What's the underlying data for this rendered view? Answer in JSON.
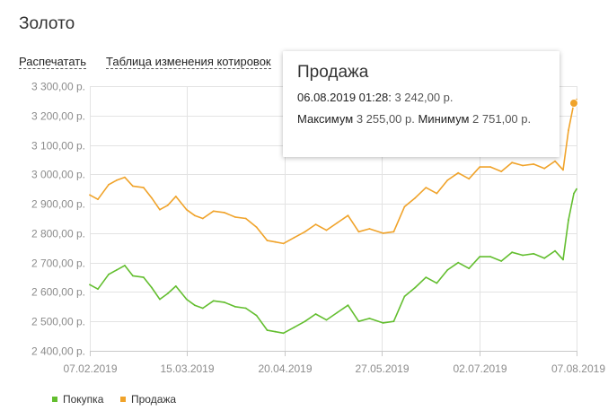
{
  "page": {
    "title": "Золото",
    "print_label": "Распечатать",
    "table_label": "Таблица изменения котировок"
  },
  "colors": {
    "buy": "#63be2f",
    "sell": "#f0a32a",
    "grid": "#e3e3e3",
    "axis": "#c8c8c8",
    "text": "#8c8c8c"
  },
  "tooltip": {
    "title": "Продажа",
    "datetime": "06.08.2019 01:28:",
    "value": "3 242,00 р.",
    "max_label": "Максимум",
    "max_value": "3 255,00 р.",
    "min_label": "Минимум",
    "min_value": "2 751,00 р."
  },
  "legend": [
    {
      "name": "Покупка",
      "color": "#63be2f"
    },
    {
      "name": "Продажа",
      "color": "#f0a32a"
    }
  ],
  "chart_data": {
    "type": "line",
    "y_tick_labels": [
      "3 300,00 р.",
      "3 200,00 р.",
      "3 100,00 р.",
      "3 000,00 р.",
      "2 900,00 р.",
      "2 800,00 р.",
      "2 700,00 р.",
      "2 600,00 р.",
      "2 500,00 р.",
      "2 400,00 р."
    ],
    "y_ticks": [
      3300,
      3200,
      3100,
      3000,
      2900,
      2800,
      2700,
      2600,
      2500,
      2400
    ],
    "ylim": [
      2390,
      3310
    ],
    "x_tick_labels": [
      "07.02.2019",
      "15.03.2019",
      "20.04.2019",
      "27.05.2019",
      "02.07.2019",
      "07.08.2019"
    ],
    "grid": true,
    "legend_position": "bottom-left",
    "x": [
      "2019-02-07",
      "2019-02-10",
      "2019-02-14",
      "2019-02-17",
      "2019-02-20",
      "2019-02-23",
      "2019-02-27",
      "2019-03-02",
      "2019-03-05",
      "2019-03-08",
      "2019-03-11",
      "2019-03-15",
      "2019-03-18",
      "2019-03-21",
      "2019-03-25",
      "2019-03-29",
      "2019-04-02",
      "2019-04-06",
      "2019-04-10",
      "2019-04-14",
      "2019-04-17",
      "2019-04-20",
      "2019-04-24",
      "2019-04-28",
      "2019-05-02",
      "2019-05-06",
      "2019-05-10",
      "2019-05-14",
      "2019-05-18",
      "2019-05-22",
      "2019-05-27",
      "2019-05-31",
      "2019-06-04",
      "2019-06-08",
      "2019-06-12",
      "2019-06-16",
      "2019-06-20",
      "2019-06-24",
      "2019-06-28",
      "2019-07-02",
      "2019-07-06",
      "2019-07-10",
      "2019-07-14",
      "2019-07-18",
      "2019-07-22",
      "2019-07-26",
      "2019-07-30",
      "2019-08-02",
      "2019-08-04",
      "2019-08-06",
      "2019-08-07"
    ],
    "series": [
      {
        "name": "Покупка",
        "color": "#63be2f",
        "values": [
          2625,
          2610,
          2660,
          2675,
          2690,
          2655,
          2650,
          2615,
          2575,
          2595,
          2620,
          2575,
          2555,
          2545,
          2570,
          2565,
          2550,
          2545,
          2520,
          2470,
          2465,
          2460,
          2480,
          2500,
          2525,
          2505,
          2530,
          2555,
          2500,
          2510,
          2495,
          2500,
          2585,
          2615,
          2650,
          2630,
          2675,
          2700,
          2680,
          2720,
          2720,
          2705,
          2735,
          2725,
          2730,
          2715,
          2740,
          2710,
          2845,
          2935,
          2950
        ]
      },
      {
        "name": "Продажа",
        "color": "#f0a32a",
        "values": [
          2930,
          2915,
          2965,
          2980,
          2990,
          2960,
          2955,
          2920,
          2880,
          2895,
          2925,
          2880,
          2860,
          2850,
          2875,
          2870,
          2855,
          2850,
          2820,
          2775,
          2770,
          2765,
          2785,
          2805,
          2830,
          2810,
          2835,
          2860,
          2805,
          2815,
          2800,
          2805,
          2890,
          2920,
          2955,
          2935,
          2980,
          3005,
          2985,
          3025,
          3025,
          3010,
          3040,
          3030,
          3035,
          3020,
          3045,
          3015,
          3150,
          3242,
          3255
        ]
      }
    ],
    "highlight": {
      "series": "Продажа",
      "x": "2019-08-06",
      "y": 3242
    }
  }
}
